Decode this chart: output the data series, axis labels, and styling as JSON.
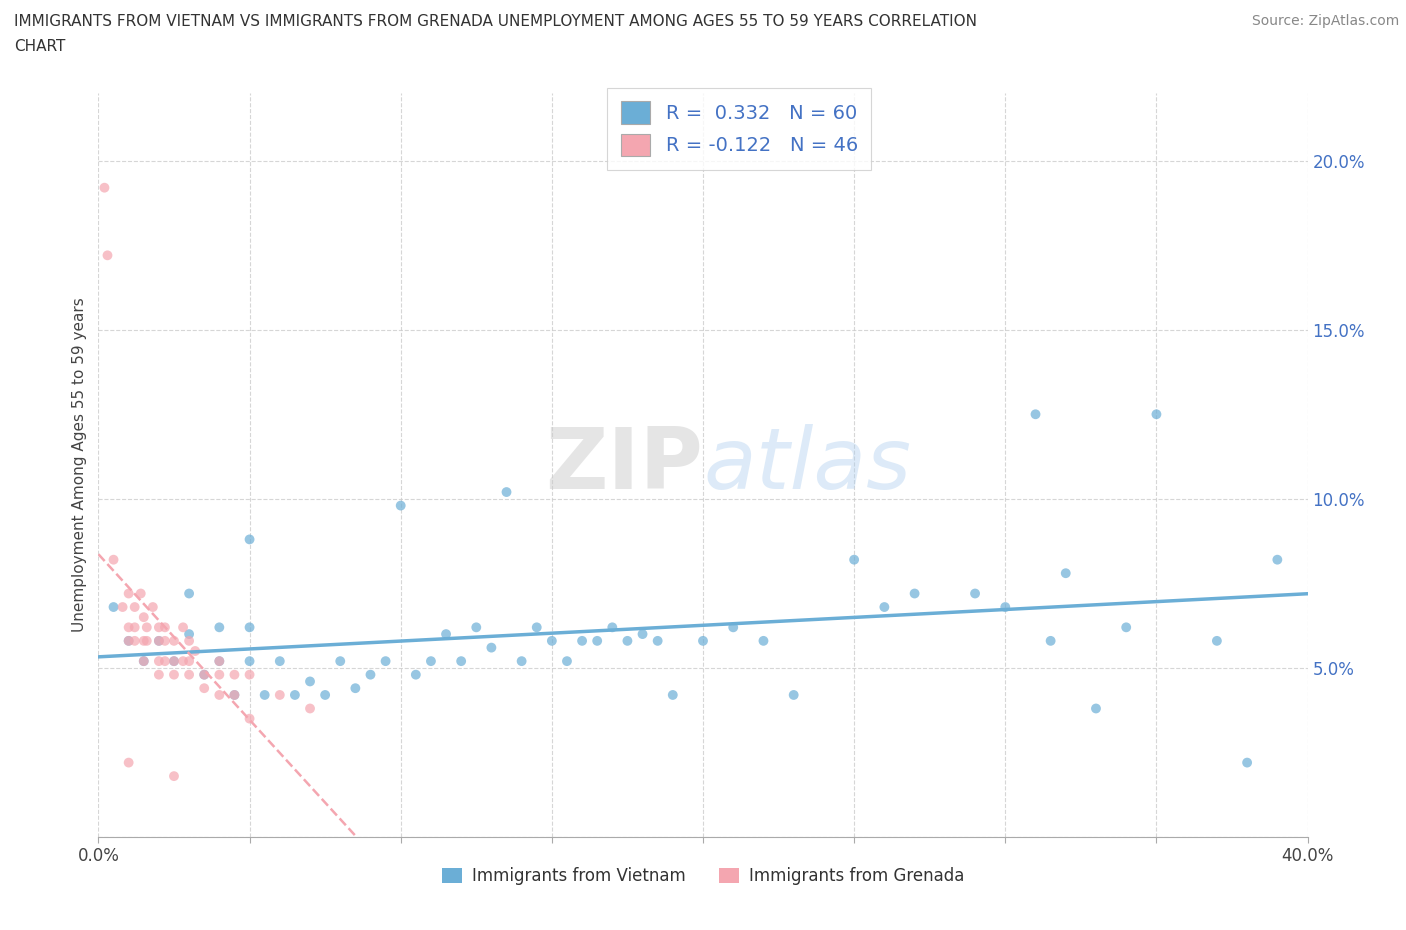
{
  "title_line1": "IMMIGRANTS FROM VIETNAM VS IMMIGRANTS FROM GRENADA UNEMPLOYMENT AMONG AGES 55 TO 59 YEARS CORRELATION",
  "title_line2": "CHART",
  "source_text": "Source: ZipAtlas.com",
  "ylabel": "Unemployment Among Ages 55 to 59 years",
  "xlim": [
    0.0,
    0.4
  ],
  "ylim": [
    0.0,
    0.22
  ],
  "vietnam_color": "#6baed6",
  "grenada_color": "#f4a6b0",
  "vietnam_R": 0.332,
  "vietnam_N": 60,
  "grenada_R": -0.122,
  "grenada_N": 46,
  "vietnam_scatter": [
    [
      0.005,
      0.068
    ],
    [
      0.01,
      0.058
    ],
    [
      0.015,
      0.052
    ],
    [
      0.02,
      0.058
    ],
    [
      0.025,
      0.052
    ],
    [
      0.03,
      0.06
    ],
    [
      0.03,
      0.072
    ],
    [
      0.035,
      0.048
    ],
    [
      0.04,
      0.052
    ],
    [
      0.04,
      0.062
    ],
    [
      0.045,
      0.042
    ],
    [
      0.05,
      0.052
    ],
    [
      0.05,
      0.062
    ],
    [
      0.05,
      0.088
    ],
    [
      0.055,
      0.042
    ],
    [
      0.06,
      0.052
    ],
    [
      0.065,
      0.042
    ],
    [
      0.07,
      0.046
    ],
    [
      0.075,
      0.042
    ],
    [
      0.08,
      0.052
    ],
    [
      0.085,
      0.044
    ],
    [
      0.09,
      0.048
    ],
    [
      0.095,
      0.052
    ],
    [
      0.1,
      0.098
    ],
    [
      0.105,
      0.048
    ],
    [
      0.11,
      0.052
    ],
    [
      0.115,
      0.06
    ],
    [
      0.12,
      0.052
    ],
    [
      0.125,
      0.062
    ],
    [
      0.13,
      0.056
    ],
    [
      0.135,
      0.102
    ],
    [
      0.14,
      0.052
    ],
    [
      0.145,
      0.062
    ],
    [
      0.15,
      0.058
    ],
    [
      0.155,
      0.052
    ],
    [
      0.16,
      0.058
    ],
    [
      0.165,
      0.058
    ],
    [
      0.17,
      0.062
    ],
    [
      0.175,
      0.058
    ],
    [
      0.18,
      0.06
    ],
    [
      0.185,
      0.058
    ],
    [
      0.19,
      0.042
    ],
    [
      0.2,
      0.058
    ],
    [
      0.21,
      0.062
    ],
    [
      0.22,
      0.058
    ],
    [
      0.23,
      0.042
    ],
    [
      0.25,
      0.082
    ],
    [
      0.26,
      0.068
    ],
    [
      0.27,
      0.072
    ],
    [
      0.29,
      0.072
    ],
    [
      0.3,
      0.068
    ],
    [
      0.31,
      0.125
    ],
    [
      0.315,
      0.058
    ],
    [
      0.32,
      0.078
    ],
    [
      0.33,
      0.038
    ],
    [
      0.34,
      0.062
    ],
    [
      0.35,
      0.125
    ],
    [
      0.37,
      0.058
    ],
    [
      0.38,
      0.022
    ],
    [
      0.39,
      0.082
    ]
  ],
  "grenada_scatter": [
    [
      0.002,
      0.192
    ],
    [
      0.003,
      0.172
    ],
    [
      0.005,
      0.082
    ],
    [
      0.008,
      0.068
    ],
    [
      0.01,
      0.072
    ],
    [
      0.01,
      0.062
    ],
    [
      0.01,
      0.058
    ],
    [
      0.012,
      0.068
    ],
    [
      0.012,
      0.062
    ],
    [
      0.012,
      0.058
    ],
    [
      0.014,
      0.072
    ],
    [
      0.015,
      0.065
    ],
    [
      0.015,
      0.058
    ],
    [
      0.015,
      0.052
    ],
    [
      0.016,
      0.062
    ],
    [
      0.016,
      0.058
    ],
    [
      0.018,
      0.068
    ],
    [
      0.02,
      0.062
    ],
    [
      0.02,
      0.058
    ],
    [
      0.02,
      0.052
    ],
    [
      0.02,
      0.048
    ],
    [
      0.022,
      0.062
    ],
    [
      0.022,
      0.058
    ],
    [
      0.022,
      0.052
    ],
    [
      0.025,
      0.058
    ],
    [
      0.025,
      0.052
    ],
    [
      0.025,
      0.048
    ],
    [
      0.028,
      0.062
    ],
    [
      0.028,
      0.052
    ],
    [
      0.03,
      0.058
    ],
    [
      0.03,
      0.052
    ],
    [
      0.03,
      0.048
    ],
    [
      0.032,
      0.055
    ],
    [
      0.035,
      0.048
    ],
    [
      0.035,
      0.044
    ],
    [
      0.04,
      0.052
    ],
    [
      0.04,
      0.048
    ],
    [
      0.04,
      0.042
    ],
    [
      0.045,
      0.048
    ],
    [
      0.045,
      0.042
    ],
    [
      0.05,
      0.048
    ],
    [
      0.05,
      0.035
    ],
    [
      0.06,
      0.042
    ],
    [
      0.07,
      0.038
    ],
    [
      0.01,
      0.022
    ],
    [
      0.025,
      0.018
    ]
  ],
  "background_color": "#ffffff",
  "grid_color": "#cccccc",
  "watermark_text": "ZIPatlas",
  "legend_vietnam_label": "Immigrants from Vietnam",
  "legend_grenada_label": "Immigrants from Grenada",
  "legend_R_color": "#4472c4",
  "scatter_alpha": 0.7,
  "scatter_size": 50
}
